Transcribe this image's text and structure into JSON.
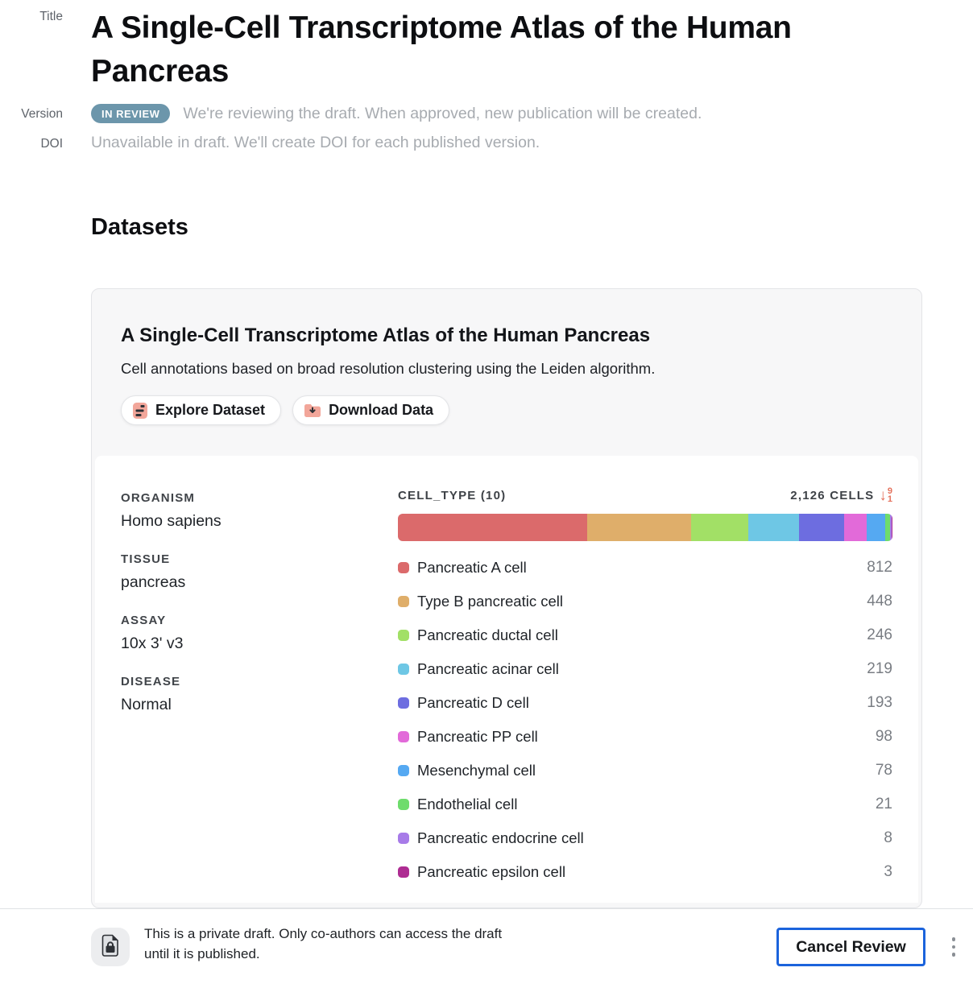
{
  "page": {
    "gutter": {
      "title": "Title",
      "version": "Version",
      "doi": "DOI"
    },
    "title": "A Single-Cell Transcriptome Atlas of the Human Pancreas",
    "version": {
      "badge": "IN REVIEW",
      "message": "We're reviewing the draft. When approved, new publication will be created."
    },
    "doi_message": "Unavailable in draft. We'll create DOI for each published version.",
    "datasets_heading": "Datasets"
  },
  "dataset_card": {
    "title": "A Single-Cell Transcriptome Atlas of the Human Pancreas",
    "subtitle": "Cell annotations based on broad resolution clustering using the Leiden algorithm.",
    "actions": {
      "explore_label": "Explore Dataset",
      "download_label": "Download Data"
    },
    "metadata": [
      {
        "label": "ORGANISM",
        "value": "Homo sapiens"
      },
      {
        "label": "TISSUE",
        "value": "pancreas"
      },
      {
        "label": "ASSAY",
        "value": "10x 3' v3"
      },
      {
        "label": "DISEASE",
        "value": "Normal"
      }
    ],
    "cell_types": {
      "header": "CELL_TYPE (10)",
      "total_label": "2,126 CELLS",
      "sort": {
        "top": "9",
        "bottom": "1"
      }
    }
  },
  "chart_data": {
    "type": "bar",
    "title": "CELL_TYPE (10)",
    "total": 2126,
    "total_label": "2,126 CELLS",
    "categories": [
      "Pancreatic A cell",
      "Type B pancreatic cell",
      "Pancreatic ductal cell",
      "Pancreatic acinar cell",
      "Pancreatic D cell",
      "Pancreatic PP cell",
      "Mesenchymal cell",
      "Endothelial cell",
      "Pancreatic endocrine cell",
      "Pancreatic epsilon cell"
    ],
    "values": [
      812,
      448,
      246,
      219,
      193,
      98,
      78,
      21,
      8,
      3
    ],
    "colors": [
      "#DB6A6B",
      "#DFAE6A",
      "#A2E066",
      "#6EC7E5",
      "#6D6DE0",
      "#E26AD9",
      "#55A9F2",
      "#6EDC6C",
      "#A77BE8",
      "#AE2C92"
    ],
    "legend_position": "below-bar",
    "sort_order": "descending"
  },
  "footer": {
    "notice": "This is a private draft. Only co-authors can access the draft until it is published.",
    "cancel_label": "Cancel Review"
  },
  "colors": {
    "badge_bg": "#6C96AB",
    "accent_blue": "#1B63DC",
    "icon_salmon": "#F2A69A",
    "sort_coral": "#E4715C",
    "muted_text": "#A7ABB0"
  }
}
